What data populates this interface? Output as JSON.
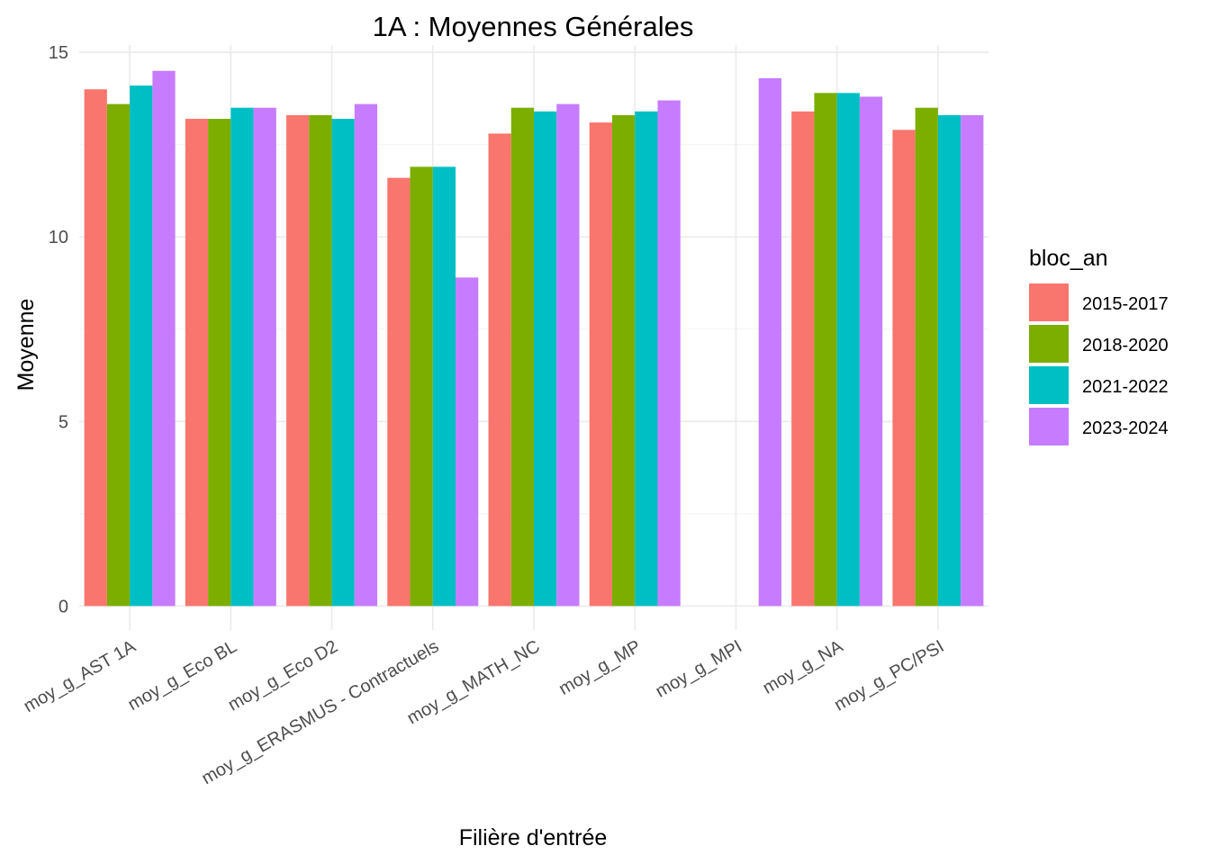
{
  "chart_data": {
    "type": "bar",
    "title": "1A : Moyennes Générales",
    "xlabel": "Filière d'entrée",
    "ylabel": "Moyenne",
    "ylim": [
      -0.65,
      15.2
    ],
    "yticks": [
      0,
      5,
      10,
      15
    ],
    "grid": true,
    "legend": {
      "title": "bloc_an",
      "position": "right"
    },
    "categories": [
      "moy_g_AST 1A",
      "moy_g_Eco BL",
      "moy_g_Eco D2",
      "moy_g_ERASMUS - Contractuels",
      "moy_g_MATH_NC",
      "moy_g_MP",
      "moy_g_MPI",
      "moy_g_NA",
      "moy_g_PC/PSI"
    ],
    "series": [
      {
        "name": "2015-2017",
        "color": "#F8766D",
        "values": [
          14.0,
          13.2,
          13.3,
          11.6,
          12.8,
          13.1,
          null,
          13.4,
          12.9
        ]
      },
      {
        "name": "2018-2020",
        "color": "#7CAE00",
        "values": [
          13.6,
          13.2,
          13.3,
          11.9,
          13.5,
          13.3,
          null,
          13.9,
          13.5
        ]
      },
      {
        "name": "2021-2022",
        "color": "#00BFC4",
        "values": [
          14.1,
          13.5,
          13.2,
          11.9,
          13.4,
          13.4,
          null,
          13.9,
          13.3
        ]
      },
      {
        "name": "2023-2024",
        "color": "#C77CFF",
        "values": [
          14.5,
          13.5,
          13.6,
          8.9,
          13.6,
          13.7,
          14.3,
          13.8,
          13.3
        ]
      }
    ]
  }
}
